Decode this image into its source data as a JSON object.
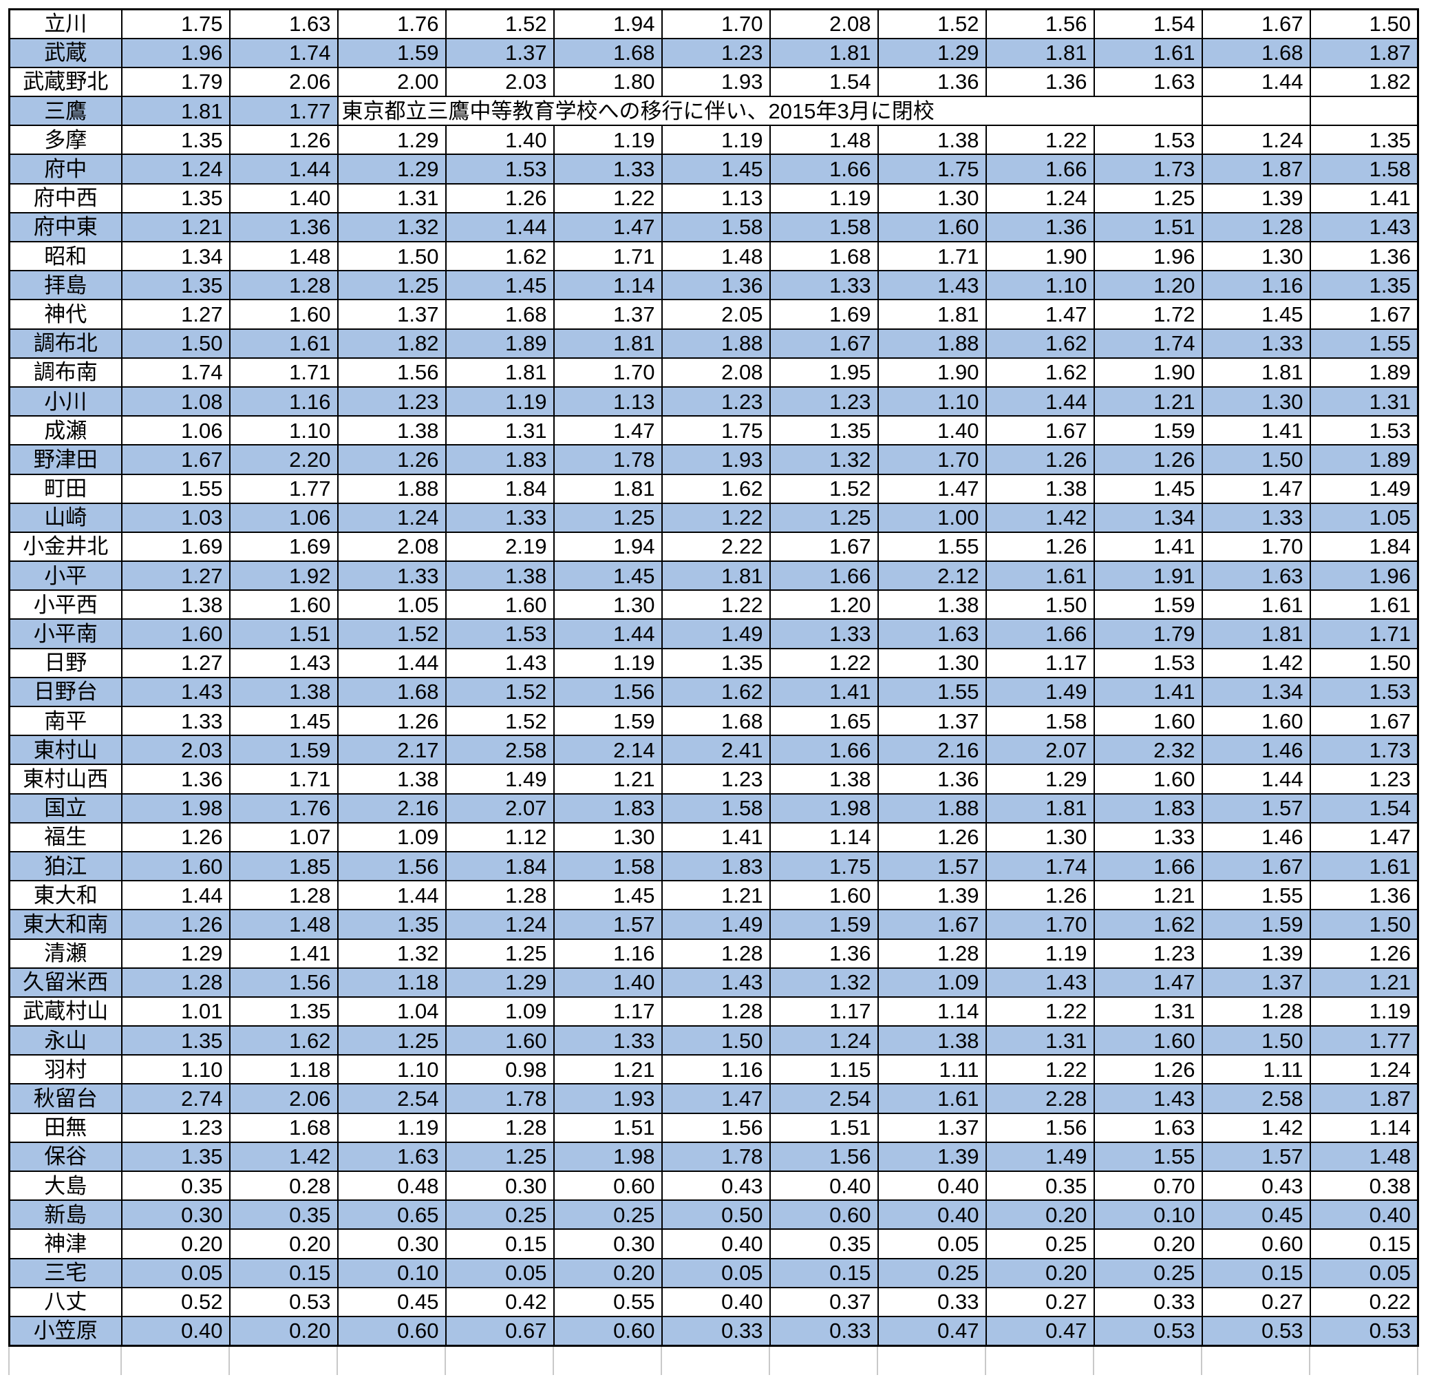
{
  "table": {
    "alt_row_color": "#A9C3E5",
    "border_color": "#000000",
    "ghost_grid_color": "#C9C9C9",
    "value_columns": 12,
    "closed_row": {
      "name": "三鷹",
      "values": [
        "1.81",
        "1.77"
      ],
      "note": "東京都立三鷹中等教育学校への移行に伴い、2015年3月に閉校",
      "note_colspan": 8,
      "trailing_empty_cells": 2
    },
    "rows": [
      {
        "name": "立川",
        "values": [
          "1.75",
          "1.63",
          "1.76",
          "1.52",
          "1.94",
          "1.70",
          "2.08",
          "1.52",
          "1.56",
          "1.54",
          "1.67",
          "1.50"
        ]
      },
      {
        "name": "武蔵",
        "values": [
          "1.96",
          "1.74",
          "1.59",
          "1.37",
          "1.68",
          "1.23",
          "1.81",
          "1.29",
          "1.81",
          "1.61",
          "1.68",
          "1.87"
        ]
      },
      {
        "name": "武蔵野北",
        "values": [
          "1.79",
          "2.06",
          "2.00",
          "2.03",
          "1.80",
          "1.93",
          "1.54",
          "1.36",
          "1.36",
          "1.63",
          "1.44",
          "1.82"
        ]
      },
      {
        "name": "三鷹",
        "values": [
          "1.81",
          "1.77"
        ],
        "note": "東京都立三鷹中等教育学校への移行に伴い、2015年3月に閉校",
        "note_colspan": 8,
        "trailing_empty_cells": 2
      },
      {
        "name": "多摩",
        "values": [
          "1.35",
          "1.26",
          "1.29",
          "1.40",
          "1.19",
          "1.19",
          "1.48",
          "1.38",
          "1.22",
          "1.53",
          "1.24",
          "1.35"
        ]
      },
      {
        "name": "府中",
        "values": [
          "1.24",
          "1.44",
          "1.29",
          "1.53",
          "1.33",
          "1.45",
          "1.66",
          "1.75",
          "1.66",
          "1.73",
          "1.87",
          "1.58"
        ]
      },
      {
        "name": "府中西",
        "values": [
          "1.35",
          "1.40",
          "1.31",
          "1.26",
          "1.22",
          "1.13",
          "1.19",
          "1.30",
          "1.24",
          "1.25",
          "1.39",
          "1.41"
        ]
      },
      {
        "name": "府中東",
        "values": [
          "1.21",
          "1.36",
          "1.32",
          "1.44",
          "1.47",
          "1.58",
          "1.58",
          "1.60",
          "1.36",
          "1.51",
          "1.28",
          "1.43"
        ]
      },
      {
        "name": "昭和",
        "values": [
          "1.34",
          "1.48",
          "1.50",
          "1.62",
          "1.71",
          "1.48",
          "1.68",
          "1.71",
          "1.90",
          "1.96",
          "1.30",
          "1.36"
        ]
      },
      {
        "name": "拝島",
        "values": [
          "1.35",
          "1.28",
          "1.25",
          "1.45",
          "1.14",
          "1.36",
          "1.33",
          "1.43",
          "1.10",
          "1.20",
          "1.16",
          "1.35"
        ]
      },
      {
        "name": "神代",
        "values": [
          "1.27",
          "1.60",
          "1.37",
          "1.68",
          "1.37",
          "2.05",
          "1.69",
          "1.81",
          "1.47",
          "1.72",
          "1.45",
          "1.67"
        ]
      },
      {
        "name": "調布北",
        "values": [
          "1.50",
          "1.61",
          "1.82",
          "1.89",
          "1.81",
          "1.88",
          "1.67",
          "1.88",
          "1.62",
          "1.74",
          "1.33",
          "1.55"
        ]
      },
      {
        "name": "調布南",
        "values": [
          "1.74",
          "1.71",
          "1.56",
          "1.81",
          "1.70",
          "2.08",
          "1.95",
          "1.90",
          "1.62",
          "1.90",
          "1.81",
          "1.89"
        ]
      },
      {
        "name": "小川",
        "values": [
          "1.08",
          "1.16",
          "1.23",
          "1.19",
          "1.13",
          "1.23",
          "1.23",
          "1.10",
          "1.44",
          "1.21",
          "1.30",
          "1.31"
        ]
      },
      {
        "name": "成瀬",
        "values": [
          "1.06",
          "1.10",
          "1.38",
          "1.31",
          "1.47",
          "1.75",
          "1.35",
          "1.40",
          "1.67",
          "1.59",
          "1.41",
          "1.53"
        ]
      },
      {
        "name": "野津田",
        "values": [
          "1.67",
          "2.20",
          "1.26",
          "1.83",
          "1.78",
          "1.93",
          "1.32",
          "1.70",
          "1.26",
          "1.26",
          "1.50",
          "1.89"
        ]
      },
      {
        "name": "町田",
        "values": [
          "1.55",
          "1.77",
          "1.88",
          "1.84",
          "1.81",
          "1.62",
          "1.52",
          "1.47",
          "1.38",
          "1.45",
          "1.47",
          "1.49"
        ]
      },
      {
        "name": "山崎",
        "values": [
          "1.03",
          "1.06",
          "1.24",
          "1.33",
          "1.25",
          "1.22",
          "1.25",
          "1.00",
          "1.42",
          "1.34",
          "1.33",
          "1.05"
        ]
      },
      {
        "name": "小金井北",
        "values": [
          "1.69",
          "1.69",
          "2.08",
          "2.19",
          "1.94",
          "2.22",
          "1.67",
          "1.55",
          "1.26",
          "1.41",
          "1.70",
          "1.84"
        ]
      },
      {
        "name": "小平",
        "values": [
          "1.27",
          "1.92",
          "1.33",
          "1.38",
          "1.45",
          "1.81",
          "1.66",
          "2.12",
          "1.61",
          "1.91",
          "1.63",
          "1.96"
        ]
      },
      {
        "name": "小平西",
        "values": [
          "1.38",
          "1.60",
          "1.05",
          "1.60",
          "1.30",
          "1.22",
          "1.20",
          "1.38",
          "1.50",
          "1.59",
          "1.61",
          "1.61"
        ]
      },
      {
        "name": "小平南",
        "values": [
          "1.60",
          "1.51",
          "1.52",
          "1.53",
          "1.44",
          "1.49",
          "1.33",
          "1.63",
          "1.66",
          "1.79",
          "1.81",
          "1.71"
        ]
      },
      {
        "name": "日野",
        "values": [
          "1.27",
          "1.43",
          "1.44",
          "1.43",
          "1.19",
          "1.35",
          "1.22",
          "1.30",
          "1.17",
          "1.53",
          "1.42",
          "1.50"
        ]
      },
      {
        "name": "日野台",
        "values": [
          "1.43",
          "1.38",
          "1.68",
          "1.52",
          "1.56",
          "1.62",
          "1.41",
          "1.55",
          "1.49",
          "1.41",
          "1.34",
          "1.53"
        ]
      },
      {
        "name": "南平",
        "values": [
          "1.33",
          "1.45",
          "1.26",
          "1.52",
          "1.59",
          "1.68",
          "1.65",
          "1.37",
          "1.58",
          "1.60",
          "1.60",
          "1.67"
        ]
      },
      {
        "name": "東村山",
        "values": [
          "2.03",
          "1.59",
          "2.17",
          "2.58",
          "2.14",
          "2.41",
          "1.66",
          "2.16",
          "2.07",
          "2.32",
          "1.46",
          "1.73"
        ]
      },
      {
        "name": "東村山西",
        "values": [
          "1.36",
          "1.71",
          "1.38",
          "1.49",
          "1.21",
          "1.23",
          "1.38",
          "1.36",
          "1.29",
          "1.60",
          "1.44",
          "1.23"
        ]
      },
      {
        "name": "国立",
        "values": [
          "1.98",
          "1.76",
          "2.16",
          "2.07",
          "1.83",
          "1.58",
          "1.98",
          "1.88",
          "1.81",
          "1.83",
          "1.57",
          "1.54"
        ]
      },
      {
        "name": "福生",
        "values": [
          "1.26",
          "1.07",
          "1.09",
          "1.12",
          "1.30",
          "1.41",
          "1.14",
          "1.26",
          "1.30",
          "1.33",
          "1.46",
          "1.47"
        ]
      },
      {
        "name": "狛江",
        "values": [
          "1.60",
          "1.85",
          "1.56",
          "1.84",
          "1.58",
          "1.83",
          "1.75",
          "1.57",
          "1.74",
          "1.66",
          "1.67",
          "1.61"
        ]
      },
      {
        "name": "東大和",
        "values": [
          "1.44",
          "1.28",
          "1.44",
          "1.28",
          "1.45",
          "1.21",
          "1.60",
          "1.39",
          "1.26",
          "1.21",
          "1.55",
          "1.36"
        ]
      },
      {
        "name": "東大和南",
        "values": [
          "1.26",
          "1.48",
          "1.35",
          "1.24",
          "1.57",
          "1.49",
          "1.59",
          "1.67",
          "1.70",
          "1.62",
          "1.59",
          "1.50"
        ]
      },
      {
        "name": "清瀬",
        "values": [
          "1.29",
          "1.41",
          "1.32",
          "1.25",
          "1.16",
          "1.28",
          "1.36",
          "1.28",
          "1.19",
          "1.23",
          "1.39",
          "1.26"
        ]
      },
      {
        "name": "久留米西",
        "values": [
          "1.28",
          "1.56",
          "1.18",
          "1.29",
          "1.40",
          "1.43",
          "1.32",
          "1.09",
          "1.43",
          "1.47",
          "1.37",
          "1.21"
        ]
      },
      {
        "name": "武蔵村山",
        "values": [
          "1.01",
          "1.35",
          "1.04",
          "1.09",
          "1.17",
          "1.28",
          "1.17",
          "1.14",
          "1.22",
          "1.31",
          "1.28",
          "1.19"
        ]
      },
      {
        "name": "永山",
        "values": [
          "1.35",
          "1.62",
          "1.25",
          "1.60",
          "1.33",
          "1.50",
          "1.24",
          "1.38",
          "1.31",
          "1.60",
          "1.50",
          "1.77"
        ]
      },
      {
        "name": "羽村",
        "values": [
          "1.10",
          "1.18",
          "1.10",
          "0.98",
          "1.21",
          "1.16",
          "1.15",
          "1.11",
          "1.22",
          "1.26",
          "1.11",
          "1.24"
        ]
      },
      {
        "name": "秋留台",
        "values": [
          "2.74",
          "2.06",
          "2.54",
          "1.78",
          "1.93",
          "1.47",
          "2.54",
          "1.61",
          "2.28",
          "1.43",
          "2.58",
          "1.87"
        ]
      },
      {
        "name": "田無",
        "values": [
          "1.23",
          "1.68",
          "1.19",
          "1.28",
          "1.51",
          "1.56",
          "1.51",
          "1.37",
          "1.56",
          "1.63",
          "1.42",
          "1.14"
        ]
      },
      {
        "name": "保谷",
        "values": [
          "1.35",
          "1.42",
          "1.63",
          "1.25",
          "1.98",
          "1.78",
          "1.56",
          "1.39",
          "1.49",
          "1.55",
          "1.57",
          "1.48"
        ]
      },
      {
        "name": "大島",
        "values": [
          "0.35",
          "0.28",
          "0.48",
          "0.30",
          "0.60",
          "0.43",
          "0.40",
          "0.40",
          "0.35",
          "0.70",
          "0.43",
          "0.38"
        ]
      },
      {
        "name": "新島",
        "values": [
          "0.30",
          "0.35",
          "0.65",
          "0.25",
          "0.25",
          "0.50",
          "0.60",
          "0.40",
          "0.20",
          "0.10",
          "0.45",
          "0.40"
        ]
      },
      {
        "name": "神津",
        "values": [
          "0.20",
          "0.20",
          "0.30",
          "0.15",
          "0.30",
          "0.40",
          "0.35",
          "0.05",
          "0.25",
          "0.20",
          "0.60",
          "0.15"
        ]
      },
      {
        "name": "三宅",
        "values": [
          "0.05",
          "0.15",
          "0.10",
          "0.05",
          "0.20",
          "0.05",
          "0.15",
          "0.25",
          "0.20",
          "0.25",
          "0.15",
          "0.05"
        ]
      },
      {
        "name": "八丈",
        "values": [
          "0.52",
          "0.53",
          "0.45",
          "0.42",
          "0.55",
          "0.40",
          "0.37",
          "0.33",
          "0.27",
          "0.33",
          "0.27",
          "0.22"
        ]
      },
      {
        "name": "小笠原",
        "values": [
          "0.40",
          "0.20",
          "0.60",
          "0.67",
          "0.60",
          "0.33",
          "0.33",
          "0.47",
          "0.47",
          "0.53",
          "0.53",
          "0.53"
        ]
      }
    ]
  }
}
